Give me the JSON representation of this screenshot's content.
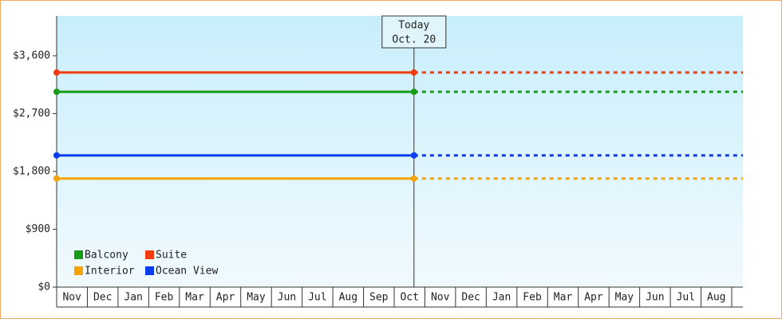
{
  "chart_data": {
    "type": "price-history",
    "today": [
      "Today",
      "Oct. 20"
    ],
    "categories": [
      "Nov",
      "Dec",
      "Jan",
      "Feb",
      "Mar",
      "Apr",
      "May",
      "Jun",
      "Jul",
      "Aug",
      "Sep",
      "Oct",
      "Nov",
      "Dec",
      "Jan",
      "Feb",
      "Mar",
      "Apr",
      "May",
      "Jun",
      "Jul",
      "Aug"
    ],
    "ylim": [
      0,
      4220
    ],
    "yticks": [
      {
        "value": 0,
        "label": "$0"
      },
      {
        "value": 900,
        "label": "$900"
      },
      {
        "value": 1800,
        "label": "$1,800"
      },
      {
        "value": 2700,
        "label": "$2,700"
      },
      {
        "value": 3600,
        "label": "$3,600"
      }
    ],
    "series": [
      {
        "name": "Balcony",
        "color": "#179a17",
        "value": 3040
      },
      {
        "name": "Suite",
        "color": "#f03c0f",
        "value": 3340
      },
      {
        "name": "Interior",
        "color": "#f5a300",
        "value": 1690
      },
      {
        "name": "Ocean View",
        "color": "#0a3cf0",
        "value": 2050
      }
    ]
  }
}
